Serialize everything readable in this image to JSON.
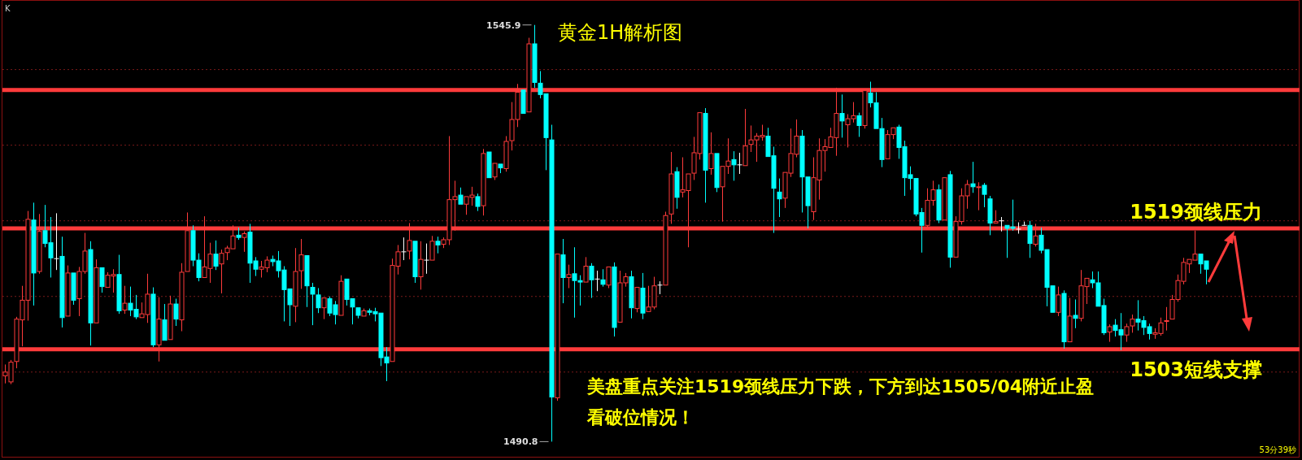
{
  "chart_data": {
    "type": "candlestick",
    "title": "黄金1H解析图",
    "categories": [
      null,
      null,
      null,
      null,
      null,
      null,
      null,
      null,
      null,
      null,
      null,
      null,
      null,
      null,
      null,
      null,
      null,
      null,
      null,
      null,
      null,
      null,
      null,
      null,
      null,
      null,
      null,
      null,
      null,
      null,
      null,
      null,
      null,
      null,
      null,
      null,
      null,
      null,
      null,
      null,
      null,
      null,
      null,
      null,
      null,
      null,
      null,
      null,
      null,
      null,
      null,
      null,
      null,
      null,
      null,
      null,
      null,
      null,
      null,
      null,
      null,
      null,
      null,
      null,
      null,
      null,
      null,
      null,
      null,
      null,
      null,
      null,
      null,
      null,
      null,
      null,
      null,
      null,
      null,
      null,
      null,
      null,
      null,
      null,
      null,
      null,
      null,
      null,
      null,
      null,
      null,
      null,
      null,
      null,
      null,
      null,
      null,
      null,
      null,
      null,
      null,
      null,
      null,
      null,
      null,
      null,
      null,
      null,
      null,
      null,
      null,
      null,
      null,
      null,
      null,
      null,
      null,
      null,
      null,
      null,
      null,
      null,
      null,
      null,
      null,
      null,
      null,
      null,
      null,
      null,
      null,
      null,
      null,
      null,
      null,
      null,
      null,
      null,
      null,
      null,
      null,
      null,
      null,
      null,
      null,
      null,
      null,
      null,
      null,
      null,
      null,
      null,
      null,
      null,
      null,
      null,
      null,
      null,
      null,
      null,
      null,
      null,
      null,
      null,
      null,
      null,
      null,
      null,
      null,
      null,
      null,
      null,
      null,
      null,
      null,
      null,
      null,
      null,
      null,
      null,
      null,
      null,
      null,
      null,
      null,
      null,
      null,
      null,
      null,
      null,
      null,
      null,
      null,
      null,
      null,
      null,
      null,
      null,
      null,
      null,
      null,
      null,
      null,
      null,
      null,
      null,
      null,
      null,
      null,
      null,
      null,
      null
    ],
    "ohlc": [
      [
        1499.5,
        1501.0,
        1498.5,
        1500.0
      ],
      [
        1498.7,
        1501.6,
        1498.4,
        1501.3
      ],
      [
        1501.4,
        1507.3,
        1500.5,
        1507.0
      ],
      [
        1506.9,
        1511.4,
        1503.4,
        1509.5
      ],
      [
        1509.5,
        1521.3,
        1506.8,
        1520.2
      ],
      [
        1520.1,
        1522.4,
        1508.8,
        1513.1
      ],
      [
        1513.3,
        1520.9,
        1513.0,
        1518.6
      ],
      [
        1518.7,
        1522.1,
        1516.5,
        1517.0
      ],
      [
        1517.1,
        1520.5,
        1512.5,
        1515.1
      ],
      [
        1515.0,
        1521.0,
        1513.5,
        1515.0
      ],
      [
        1515.3,
        1517.9,
        1505.9,
        1507.2
      ],
      [
        1507.4,
        1514.1,
        1507.2,
        1513.1
      ],
      [
        1513.1,
        1513.1,
        1508.9,
        1509.5
      ],
      [
        1509.7,
        1513.9,
        1507.4,
        1513.3
      ],
      [
        1513.3,
        1518.4,
        1513.0,
        1516.0
      ],
      [
        1516.2,
        1517.3,
        1503.5,
        1506.5
      ],
      [
        1506.5,
        1514.9,
        1506.4,
        1513.8
      ],
      [
        1513.8,
        1514.0,
        1510.5,
        1511.3
      ],
      [
        1511.2,
        1513.2,
        1511.1,
        1512.8
      ],
      [
        1512.7,
        1513.6,
        1510.5,
        1512.9
      ],
      [
        1512.9,
        1515.5,
        1507.7,
        1508.1
      ],
      [
        1508.2,
        1511.4,
        1507.7,
        1509.1
      ],
      [
        1509.1,
        1511.3,
        1507.4,
        1508.2
      ],
      [
        1508.3,
        1510.2,
        1507.0,
        1507.3
      ],
      [
        1507.2,
        1509.2,
        1507.0,
        1507.7
      ],
      [
        1507.6,
        1513.0,
        1506.5,
        1510.3
      ],
      [
        1510.3,
        1511.2,
        1503.3,
        1503.6
      ],
      [
        1503.6,
        1509.9,
        1501.4,
        1507.0
      ],
      [
        1506.9,
        1509.0,
        1504.0,
        1504.2
      ],
      [
        1504.3,
        1510.1,
        1504.3,
        1509.0
      ],
      [
        1509.0,
        1509.7,
        1506.1,
        1507.0
      ],
      [
        1506.9,
        1514.4,
        1505.4,
        1513.2
      ],
      [
        1513.3,
        1521.1,
        1513.1,
        1518.7
      ],
      [
        1518.7,
        1519.4,
        1514.0,
        1514.8
      ],
      [
        1514.8,
        1515.7,
        1512.0,
        1512.5
      ],
      [
        1512.5,
        1520.6,
        1512.5,
        1513.9
      ],
      [
        1513.7,
        1517.1,
        1511.8,
        1515.6
      ],
      [
        1515.6,
        1517.4,
        1513.5,
        1514.0
      ],
      [
        1514.3,
        1516.2,
        1510.4,
        1515.7
      ],
      [
        1515.8,
        1516.7,
        1514.8,
        1516.4
      ],
      [
        1516.3,
        1519.4,
        1516.3,
        1518.0
      ],
      [
        1518.1,
        1519.1,
        1517.5,
        1517.8
      ],
      [
        1517.8,
        1518.6,
        1515.9,
        1518.3
      ],
      [
        1518.5,
        1519.6,
        1511.8,
        1514.4
      ],
      [
        1514.7,
        1515.2,
        1512.7,
        1513.6
      ],
      [
        1513.6,
        1514.7,
        1512.5,
        1513.9
      ],
      [
        1513.8,
        1515.3,
        1513.2,
        1514.8
      ],
      [
        1514.9,
        1515.4,
        1514.0,
        1514.6
      ],
      [
        1514.7,
        1516.0,
        1512.5,
        1513.4
      ],
      [
        1513.5,
        1514.0,
        1506.7,
        1510.9
      ],
      [
        1511.0,
        1511.1,
        1506.1,
        1508.9
      ],
      [
        1508.7,
        1516.4,
        1506.6,
        1513.3
      ],
      [
        1513.4,
        1517.6,
        1511.0,
        1515.5
      ],
      [
        1515.4,
        1515.6,
        1508.6,
        1511.4
      ],
      [
        1511.2,
        1511.8,
        1506.2,
        1510.3
      ],
      [
        1510.2,
        1511.1,
        1507.8,
        1508.5
      ],
      [
        1508.5,
        1509.8,
        1507.0,
        1509.8
      ],
      [
        1509.7,
        1510.0,
        1507.4,
        1507.8
      ],
      [
        1508.9,
        1509.4,
        1506.3,
        1507.6
      ],
      [
        1507.5,
        1512.8,
        1507.4,
        1512.0
      ],
      [
        1512.3,
        1512.4,
        1508.8,
        1509.6
      ],
      [
        1509.7,
        1509.7,
        1506.3,
        1508.6
      ],
      [
        1508.5,
        1508.7,
        1507.1,
        1507.5
      ],
      [
        1507.4,
        1508.4,
        1507.2,
        1508.1
      ],
      [
        1508.1,
        1508.4,
        1507.5,
        1507.9
      ],
      [
        1508.0,
        1508.5,
        1506.7,
        1507.7
      ],
      [
        1507.8,
        1507.8,
        1500.8,
        1501.9
      ],
      [
        1502.0,
        1503.3,
        1498.8,
        1501.2
      ],
      [
        1501.4,
        1515.0,
        1501.3,
        1514.1
      ],
      [
        1514.0,
        1516.8,
        1512.9,
        1515.9
      ],
      [
        1515.9,
        1517.8,
        1514.8,
        1515.9
      ],
      [
        1516.0,
        1519.7,
        1514.9,
        1517.4
      ],
      [
        1517.3,
        1517.3,
        1511.8,
        1512.6
      ],
      [
        1512.6,
        1517.3,
        1510.9,
        1514.9
      ],
      [
        1514.8,
        1517.0,
        1513.0,
        1514.8
      ],
      [
        1514.8,
        1518.0,
        1514.7,
        1517.3
      ],
      [
        1517.3,
        1517.9,
        1515.7,
        1516.8
      ],
      [
        1516.9,
        1517.8,
        1516.4,
        1517.5
      ],
      [
        1517.5,
        1531.2,
        1516.8,
        1522.8
      ],
      [
        1522.8,
        1525.3,
        1518.7,
        1523.2
      ],
      [
        1523.4,
        1524.4,
        1522.1,
        1522.2
      ],
      [
        1522.2,
        1523.2,
        1520.8,
        1523.2
      ],
      [
        1523.1,
        1524.5,
        1522.0,
        1523.4
      ],
      [
        1523.2,
        1523.6,
        1521.3,
        1521.9
      ],
      [
        1522.0,
        1529.5,
        1520.7,
        1528.9
      ],
      [
        1529.1,
        1529.1,
        1525.5,
        1525.7
      ],
      [
        1525.8,
        1527.7,
        1525.4,
        1527.6
      ],
      [
        1527.5,
        1527.7,
        1526.3,
        1527.0
      ],
      [
        1526.9,
        1531.2,
        1526.5,
        1530.5
      ],
      [
        1530.6,
        1535.7,
        1529.3,
        1533.4
      ],
      [
        1533.4,
        1538.1,
        1532.4,
        1537.0
      ],
      [
        1537.3,
        1537.3,
        1534.2,
        1534.2
      ],
      [
        1534.4,
        1544.2,
        1534.4,
        1543.4
      ],
      [
        1543.4,
        1545.9,
        1537.6,
        1538.3
      ],
      [
        1538.2,
        1539.8,
        1536.2,
        1536.7
      ],
      [
        1536.8,
        1536.8,
        1526.7,
        1531.0
      ],
      [
        1530.7,
        1532.7,
        1490.8,
        1496.7
      ],
      [
        1496.6,
        1515.6,
        1496.2,
        1515.6
      ],
      [
        1515.5,
        1517.6,
        1509.1,
        1512.5
      ],
      [
        1512.5,
        1514.2,
        1511.1,
        1512.9
      ],
      [
        1513.0,
        1516.5,
        1507.2,
        1512.1
      ],
      [
        1512.1,
        1512.8,
        1508.8,
        1511.9
      ],
      [
        1511.9,
        1515.2,
        1511.7,
        1514.0
      ],
      [
        1514.0,
        1514.4,
        1509.8,
        1512.2
      ],
      [
        1512.3,
        1513.4,
        1510.7,
        1512.3
      ],
      [
        1512.2,
        1513.6,
        1511.3,
        1511.6
      ],
      [
        1511.5,
        1513.9,
        1511.1,
        1513.9
      ],
      [
        1513.9,
        1514.5,
        1504.7,
        1505.9
      ],
      [
        1506.6,
        1513.4,
        1506.6,
        1511.8
      ],
      [
        1511.8,
        1513.1,
        1511.3,
        1512.6
      ],
      [
        1512.6,
        1513.4,
        1507.1,
        1508.5
      ],
      [
        1508.4,
        1511.2,
        1507.9,
        1511.2
      ],
      [
        1511.1,
        1513.1,
        1507.0,
        1507.8
      ],
      [
        1508.0,
        1511.4,
        1508.0,
        1508.6
      ],
      [
        1508.6,
        1512.6,
        1508.3,
        1511.4
      ],
      [
        1511.5,
        1512.0,
        1510.3,
        1511.5
      ],
      [
        1511.5,
        1521.2,
        1511.5,
        1520.7
      ],
      [
        1520.9,
        1529.1,
        1519.6,
        1526.2
      ],
      [
        1526.5,
        1527.1,
        1521.6,
        1523.1
      ],
      [
        1523.8,
        1528.4,
        1523.1,
        1524.1
      ],
      [
        1524.0,
        1526.2,
        1516.5,
        1526.2
      ],
      [
        1526.3,
        1531.1,
        1525.4,
        1529.0
      ],
      [
        1528.9,
        1534.3,
        1528.1,
        1534.3
      ],
      [
        1534.2,
        1534.9,
        1522.4,
        1526.7
      ],
      [
        1526.9,
        1531.7,
        1526.1,
        1528.9
      ],
      [
        1528.9,
        1528.9,
        1523.8,
        1524.4
      ],
      [
        1524.5,
        1527.2,
        1519.9,
        1527.2
      ],
      [
        1527.2,
        1530.9,
        1526.2,
        1527.9
      ],
      [
        1528.1,
        1529.2,
        1525.3,
        1527.4
      ],
      [
        1527.4,
        1529.0,
        1526.2,
        1527.4
      ],
      [
        1527.3,
        1534.8,
        1527.2,
        1529.9
      ],
      [
        1530.1,
        1532.6,
        1529.1,
        1530.7
      ],
      [
        1530.7,
        1531.6,
        1527.8,
        1531.2
      ],
      [
        1531.1,
        1532.7,
        1530.6,
        1531.3
      ],
      [
        1531.2,
        1532.3,
        1528.4,
        1528.5
      ],
      [
        1528.6,
        1529.8,
        1518.4,
        1524.3
      ],
      [
        1523.8,
        1525.6,
        1520.5,
        1522.9
      ],
      [
        1523.0,
        1526.5,
        1521.7,
        1526.4
      ],
      [
        1526.3,
        1532.2,
        1525.8,
        1528.9
      ],
      [
        1528.8,
        1533.4,
        1528.4,
        1531.2
      ],
      [
        1531.2,
        1532.0,
        1521.1,
        1525.8
      ],
      [
        1525.8,
        1525.8,
        1519.0,
        1522.0
      ],
      [
        1521.2,
        1528.4,
        1520.1,
        1525.7
      ],
      [
        1525.4,
        1530.9,
        1522.8,
        1529.3
      ],
      [
        1529.3,
        1530.8,
        1526.5,
        1529.8
      ],
      [
        1529.7,
        1532.3,
        1529.5,
        1531.1
      ],
      [
        1531.0,
        1537.6,
        1528.6,
        1534.2
      ],
      [
        1534.2,
        1536.7,
        1531.0,
        1533.2
      ],
      [
        1532.7,
        1534.1,
        1529.7,
        1533.5
      ],
      [
        1533.5,
        1535.7,
        1533.0,
        1533.9
      ],
      [
        1533.9,
        1534.3,
        1531.1,
        1532.6
      ],
      [
        1532.6,
        1537.4,
        1532.2,
        1537.2
      ],
      [
        1536.9,
        1538.4,
        1535.0,
        1535.6
      ],
      [
        1535.6,
        1537.0,
        1532.0,
        1532.2
      ],
      [
        1532.2,
        1533.6,
        1527.1,
        1528.1
      ],
      [
        1528.2,
        1532.0,
        1528.2,
        1531.4
      ],
      [
        1531.4,
        1532.5,
        1530.8,
        1532.3
      ],
      [
        1532.4,
        1532.7,
        1528.2,
        1529.7
      ],
      [
        1529.8,
        1530.6,
        1523.3,
        1525.7
      ],
      [
        1526.1,
        1527.2,
        1524.1,
        1525.6
      ],
      [
        1525.6,
        1525.7,
        1520.6,
        1520.9
      ],
      [
        1521.1,
        1521.7,
        1515.8,
        1519.4
      ],
      [
        1519.4,
        1524.3,
        1518.9,
        1522.7
      ],
      [
        1522.7,
        1525.3,
        1522.0,
        1524.1
      ],
      [
        1524.1,
        1524.8,
        1519.7,
        1520.1
      ],
      [
        1520.1,
        1525.7,
        1520.1,
        1525.7
      ],
      [
        1526.1,
        1526.6,
        1513.8,
        1515.2
      ],
      [
        1515.2,
        1520.6,
        1515.0,
        1519.9
      ],
      [
        1519.9,
        1524.3,
        1519.5,
        1523.3
      ],
      [
        1523.3,
        1525.4,
        1521.6,
        1524.8
      ],
      [
        1524.9,
        1527.8,
        1523.7,
        1524.5
      ],
      [
        1524.4,
        1525.1,
        1521.4,
        1524.5
      ],
      [
        1524.7,
        1525.0,
        1521.8,
        1523.5
      ],
      [
        1522.9,
        1523.3,
        1518.1,
        1519.7
      ],
      [
        1519.7,
        1521.4,
        1519.6,
        1519.9
      ],
      [
        1520.0,
        1520.5,
        1518.6,
        1520.0
      ],
      [
        1519.4,
        1519.6,
        1515.1,
        1519.0
      ],
      [
        1519.2,
        1522.8,
        1518.7,
        1519.0
      ],
      [
        1518.9,
        1519.8,
        1518.3,
        1518.9
      ],
      [
        1519.4,
        1519.9,
        1519.2,
        1519.4
      ],
      [
        1519.4,
        1520.0,
        1515.1,
        1517.0
      ],
      [
        1516.9,
        1519.6,
        1516.6,
        1518.0
      ],
      [
        1518.1,
        1519.1,
        1515.7,
        1516.1
      ],
      [
        1516.2,
        1516.4,
        1508.7,
        1511.2
      ],
      [
        1511.4,
        1511.4,
        1507.7,
        1507.9
      ],
      [
        1507.9,
        1511.3,
        1507.4,
        1510.2
      ],
      [
        1510.4,
        1510.8,
        1503.1,
        1504.0
      ],
      [
        1504.0,
        1509.8,
        1504.0,
        1507.4
      ],
      [
        1507.5,
        1509.6,
        1505.8,
        1507.1
      ],
      [
        1507.1,
        1513.5,
        1506.7,
        1511.4
      ],
      [
        1511.3,
        1512.6,
        1509.0,
        1512.4
      ],
      [
        1512.2,
        1513.3,
        1511.1,
        1511.8
      ],
      [
        1511.8,
        1513.3,
        1508.6,
        1508.7
      ],
      [
        1508.8,
        1509.7,
        1504.9,
        1505.2
      ],
      [
        1505.3,
        1506.3,
        1504.0,
        1506.0
      ],
      [
        1506.2,
        1507.0,
        1504.7,
        1505.5
      ],
      [
        1505.6,
        1507.8,
        1502.9,
        1504.9
      ],
      [
        1504.9,
        1506.4,
        1504.0,
        1506.0
      ],
      [
        1506.1,
        1507.6,
        1505.2,
        1507.0
      ],
      [
        1507.0,
        1509.5,
        1505.5,
        1506.6
      ],
      [
        1506.8,
        1507.4,
        1504.9,
        1505.9
      ],
      [
        1506.0,
        1506.4,
        1504.3,
        1505.1
      ],
      [
        1505.0,
        1505.8,
        1504.4,
        1505.2
      ],
      [
        1505.1,
        1507.2,
        1504.8,
        1506.5
      ],
      [
        1506.7,
        1508.6,
        1505.5,
        1506.8
      ],
      [
        1507.0,
        1510.2,
        1506.8,
        1509.6
      ],
      [
        1509.6,
        1512.9,
        1509.3,
        1512.1
      ],
      [
        1512.0,
        1515.1,
        1511.6,
        1514.5
      ],
      [
        1514.3,
        1515.1,
        1513.1,
        1514.9
      ],
      [
        1514.8,
        1518.7,
        1514.7,
        1515.6
      ],
      [
        1515.6,
        1515.8,
        1513.0,
        1514.3
      ],
      [
        1514.7,
        1514.7,
        1511.6,
        1513.6
      ]
    ],
    "ylim": [
      1488.8,
      1549.2
    ],
    "yticks": [
      {
        "value": 1500,
        "label": null
      },
      {
        "value": 1510,
        "label": null
      },
      {
        "value": 1520,
        "label": null
      },
      {
        "value": 1530,
        "label": null
      },
      {
        "value": 1540,
        "label": null
      }
    ],
    "grid": "y",
    "ref_lines": [
      {
        "axis": "y",
        "value": 1537.3,
        "label": null,
        "color": "#ff3b3b"
      },
      {
        "axis": "y",
        "value": 1519,
        "label": "1519颈线压力",
        "color": "#ff3b3b"
      },
      {
        "axis": "y",
        "value": 1503,
        "label": "1503短线支撑",
        "color": "#ff3b3b"
      }
    ],
    "annotations": [
      "K",
      "1545.9",
      "1490.8",
      "美盘重点关注1519颈线压力下跌，下方到达1505/04附近止盈",
      "看破位情况！",
      "53分39秒"
    ]
  }
}
